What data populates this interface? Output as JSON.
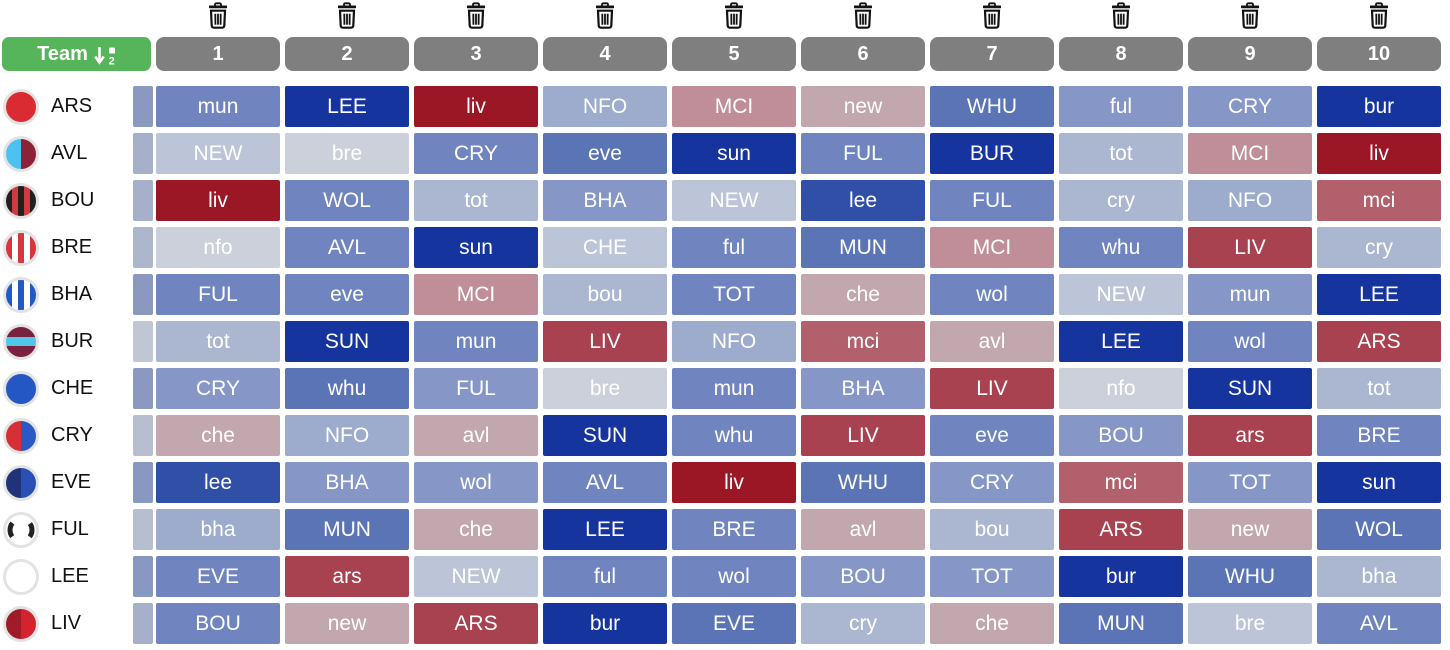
{
  "palette": {
    "b1": "#16349d",
    "b2": "#3050a8",
    "b3": "#5a74b6",
    "b4": "#7085bf",
    "b5": "#8696c6",
    "b6": "#9dabcc",
    "b7": "#abb7d1",
    "b8": "#bcc5d7",
    "b9": "#cbd0da",
    "r1": "#c3a7ae",
    "r2": "#bf8e99",
    "r3": "#b2606c",
    "r4": "#a84250",
    "r5": "#9c1726"
  },
  "header": {
    "team_label": "Team",
    "team_button_color": "#56b55a",
    "chip_color": "#7f7f7f",
    "gameweeks": [
      "1",
      "2",
      "3",
      "4",
      "5",
      "6",
      "7",
      "8",
      "9",
      "10"
    ]
  },
  "teams": [
    {
      "abbr": "ARS",
      "badge": {
        "type": "solid",
        "colors": [
          "#d92b31"
        ]
      },
      "strip": "#8b99c0",
      "fixtures": [
        {
          "opp": "mun",
          "d": "b4"
        },
        {
          "opp": "LEE",
          "d": "b1"
        },
        {
          "opp": "liv",
          "d": "r5"
        },
        {
          "opp": "NFO",
          "d": "b6"
        },
        {
          "opp": "MCI",
          "d": "r2"
        },
        {
          "opp": "new",
          "d": "r1"
        },
        {
          "opp": "WHU",
          "d": "b3"
        },
        {
          "opp": "ful",
          "d": "b5"
        },
        {
          "opp": "CRY",
          "d": "b5"
        },
        {
          "opp": "bur",
          "d": "b1"
        }
      ]
    },
    {
      "abbr": "AVL",
      "badge": {
        "type": "split",
        "colors": [
          "#4cc3ef",
          "#8d2237"
        ]
      },
      "strip": "#a6b0cb",
      "fixtures": [
        {
          "opp": "NEW",
          "d": "b8"
        },
        {
          "opp": "bre",
          "d": "b9"
        },
        {
          "opp": "CRY",
          "d": "b4"
        },
        {
          "opp": "eve",
          "d": "b3"
        },
        {
          "opp": "sun",
          "d": "b1"
        },
        {
          "opp": "FUL",
          "d": "b4"
        },
        {
          "opp": "BUR",
          "d": "b1"
        },
        {
          "opp": "tot",
          "d": "b7"
        },
        {
          "opp": "MCI",
          "d": "r2"
        },
        {
          "opp": "liv",
          "d": "r5"
        }
      ]
    },
    {
      "abbr": "BOU",
      "badge": {
        "type": "stripes",
        "colors": [
          "#221f1f",
          "#cf3b40"
        ]
      },
      "strip": "#a6b0cb",
      "fixtures": [
        {
          "opp": "liv",
          "d": "r5"
        },
        {
          "opp": "WOL",
          "d": "b4"
        },
        {
          "opp": "tot",
          "d": "b7"
        },
        {
          "opp": "BHA",
          "d": "b5"
        },
        {
          "opp": "NEW",
          "d": "b8"
        },
        {
          "opp": "lee",
          "d": "b2"
        },
        {
          "opp": "FUL",
          "d": "b4"
        },
        {
          "opp": "cry",
          "d": "b7"
        },
        {
          "opp": "NFO",
          "d": "b6"
        },
        {
          "opp": "mci",
          "d": "r3"
        }
      ]
    },
    {
      "abbr": "BRE",
      "badge": {
        "type": "stripes",
        "colors": [
          "#d8353c",
          "#ffffff"
        ]
      },
      "strip": "#aeb6cc",
      "fixtures": [
        {
          "opp": "nfo",
          "d": "b9"
        },
        {
          "opp": "AVL",
          "d": "b4"
        },
        {
          "opp": "sun",
          "d": "b1"
        },
        {
          "opp": "CHE",
          "d": "b8"
        },
        {
          "opp": "ful",
          "d": "b4"
        },
        {
          "opp": "MUN",
          "d": "b3"
        },
        {
          "opp": "MCI",
          "d": "r2"
        },
        {
          "opp": "whu",
          "d": "b4"
        },
        {
          "opp": "LIV",
          "d": "r4"
        },
        {
          "opp": "cry",
          "d": "b7"
        }
      ]
    },
    {
      "abbr": "BHA",
      "badge": {
        "type": "stripes",
        "colors": [
          "#2359c4",
          "#ffffff"
        ]
      },
      "strip": "#8b99c0",
      "fixtures": [
        {
          "opp": "FUL",
          "d": "b4"
        },
        {
          "opp": "eve",
          "d": "b4"
        },
        {
          "opp": "MCI",
          "d": "r2"
        },
        {
          "opp": "bou",
          "d": "b7"
        },
        {
          "opp": "TOT",
          "d": "b4"
        },
        {
          "opp": "che",
          "d": "r1"
        },
        {
          "opp": "wol",
          "d": "b4"
        },
        {
          "opp": "NEW",
          "d": "b8"
        },
        {
          "opp": "mun",
          "d": "b5"
        },
        {
          "opp": "LEE",
          "d": "b1"
        }
      ]
    },
    {
      "abbr": "BUR",
      "badge": {
        "type": "band",
        "colors": [
          "#7a2040",
          "#52c7e8"
        ]
      },
      "strip": "#c0c6d4",
      "fixtures": [
        {
          "opp": "tot",
          "d": "b7"
        },
        {
          "opp": "SUN",
          "d": "b1"
        },
        {
          "opp": "mun",
          "d": "b4"
        },
        {
          "opp": "LIV",
          "d": "r4"
        },
        {
          "opp": "NFO",
          "d": "b6"
        },
        {
          "opp": "mci",
          "d": "r3"
        },
        {
          "opp": "avl",
          "d": "r1"
        },
        {
          "opp": "LEE",
          "d": "b1"
        },
        {
          "opp": "wol",
          "d": "b4"
        },
        {
          "opp": "ARS",
          "d": "r4"
        }
      ]
    },
    {
      "abbr": "CHE",
      "badge": {
        "type": "solid",
        "colors": [
          "#2456c4"
        ]
      },
      "strip": "#8b99c0",
      "fixtures": [
        {
          "opp": "CRY",
          "d": "b5"
        },
        {
          "opp": "whu",
          "d": "b3"
        },
        {
          "opp": "FUL",
          "d": "b5"
        },
        {
          "opp": "bre",
          "d": "b9"
        },
        {
          "opp": "mun",
          "d": "b4"
        },
        {
          "opp": "BHA",
          "d": "b5"
        },
        {
          "opp": "LIV",
          "d": "r4"
        },
        {
          "opp": "nfo",
          "d": "b9"
        },
        {
          "opp": "SUN",
          "d": "b1"
        },
        {
          "opp": "tot",
          "d": "b7"
        }
      ]
    },
    {
      "abbr": "CRY",
      "badge": {
        "type": "split",
        "colors": [
          "#d63036",
          "#2859c5"
        ]
      },
      "strip": "#b6becf",
      "fixtures": [
        {
          "opp": "che",
          "d": "r1"
        },
        {
          "opp": "NFO",
          "d": "b6"
        },
        {
          "opp": "avl",
          "d": "r1"
        },
        {
          "opp": "SUN",
          "d": "b1"
        },
        {
          "opp": "whu",
          "d": "b4"
        },
        {
          "opp": "LIV",
          "d": "r4"
        },
        {
          "opp": "eve",
          "d": "b4"
        },
        {
          "opp": "BOU",
          "d": "b5"
        },
        {
          "opp": "ars",
          "d": "r4"
        },
        {
          "opp": "BRE",
          "d": "b4"
        }
      ]
    },
    {
      "abbr": "EVE",
      "badge": {
        "type": "split",
        "colors": [
          "#20337a",
          "#2b50b5"
        ]
      },
      "strip": "#8998c0",
      "fixtures": [
        {
          "opp": "lee",
          "d": "b2"
        },
        {
          "opp": "BHA",
          "d": "b5"
        },
        {
          "opp": "wol",
          "d": "b5"
        },
        {
          "opp": "AVL",
          "d": "b4"
        },
        {
          "opp": "liv",
          "d": "r5"
        },
        {
          "opp": "WHU",
          "d": "b3"
        },
        {
          "opp": "CRY",
          "d": "b5"
        },
        {
          "opp": "mci",
          "d": "r3"
        },
        {
          "opp": "TOT",
          "d": "b5"
        },
        {
          "opp": "sun",
          "d": "b1"
        }
      ]
    },
    {
      "abbr": "FUL",
      "badge": {
        "type": "arcs",
        "colors": [
          "#ffffff",
          "#222222"
        ]
      },
      "strip": "#b6becf",
      "fixtures": [
        {
          "opp": "bha",
          "d": "b6"
        },
        {
          "opp": "MUN",
          "d": "b3"
        },
        {
          "opp": "che",
          "d": "r1"
        },
        {
          "opp": "LEE",
          "d": "b1"
        },
        {
          "opp": "BRE",
          "d": "b4"
        },
        {
          "opp": "avl",
          "d": "r1"
        },
        {
          "opp": "bou",
          "d": "b7"
        },
        {
          "opp": "ARS",
          "d": "r4"
        },
        {
          "opp": "new",
          "d": "r1"
        },
        {
          "opp": "WOL",
          "d": "b3"
        }
      ]
    },
    {
      "abbr": "LEE",
      "badge": {
        "type": "solid",
        "colors": [
          "#ffffff"
        ]
      },
      "strip": "#8998c0",
      "fixtures": [
        {
          "opp": "EVE",
          "d": "b4"
        },
        {
          "opp": "ars",
          "d": "r4"
        },
        {
          "opp": "NEW",
          "d": "b8"
        },
        {
          "opp": "ful",
          "d": "b4"
        },
        {
          "opp": "wol",
          "d": "b4"
        },
        {
          "opp": "BOU",
          "d": "b5"
        },
        {
          "opp": "TOT",
          "d": "b5"
        },
        {
          "opp": "bur",
          "d": "b1"
        },
        {
          "opp": "WHU",
          "d": "b3"
        },
        {
          "opp": "bha",
          "d": "b7"
        }
      ]
    },
    {
      "abbr": "LIV",
      "badge": {
        "type": "split",
        "colors": [
          "#a01b28",
          "#d42330"
        ]
      },
      "strip": "#a6b0cb",
      "fixtures": [
        {
          "opp": "BOU",
          "d": "b4"
        },
        {
          "opp": "new",
          "d": "r1"
        },
        {
          "opp": "ARS",
          "d": "r4"
        },
        {
          "opp": "bur",
          "d": "b1"
        },
        {
          "opp": "EVE",
          "d": "b3"
        },
        {
          "opp": "cry",
          "d": "b7"
        },
        {
          "opp": "che",
          "d": "r1"
        },
        {
          "opp": "MUN",
          "d": "b3"
        },
        {
          "opp": "bre",
          "d": "b8"
        },
        {
          "opp": "AVL",
          "d": "b4"
        }
      ]
    }
  ]
}
